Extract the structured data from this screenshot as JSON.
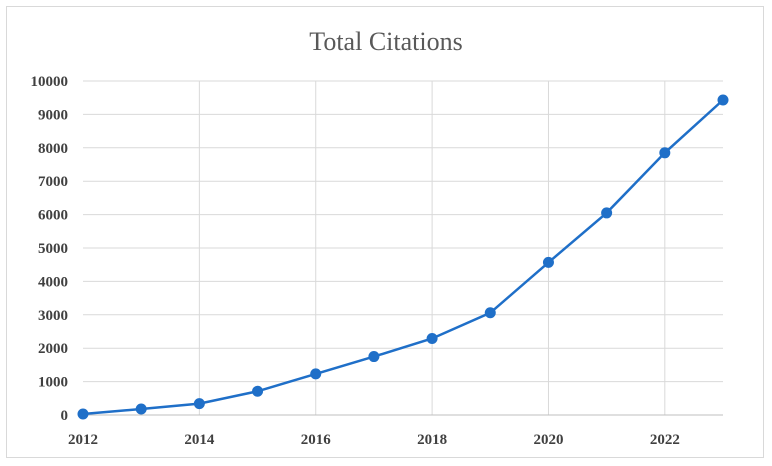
{
  "chart_data": {
    "type": "line",
    "title": "Total Citations",
    "xlabel": "",
    "ylabel": "",
    "x": [
      2012,
      2013,
      2014,
      2015,
      2016,
      2017,
      2018,
      2019,
      2020,
      2021,
      2022,
      2023
    ],
    "series": [
      {
        "values": [
          30,
          180,
          340,
          710,
          1230,
          1750,
          2290,
          3060,
          4570,
          6050,
          7850,
          9430
        ]
      }
    ],
    "xlim": [
      2012,
      2023
    ],
    "ylim": [
      0,
      10000
    ],
    "yticks": [
      "0",
      "1000",
      "2000",
      "3000",
      "4000",
      "5000",
      "6000",
      "7000",
      "8000",
      "9000",
      "10000"
    ],
    "xticks": [
      "2012",
      "2014",
      "2016",
      "2018",
      "2020",
      "2022"
    ],
    "grid": true,
    "legend": "none",
    "colors": {
      "line": "#1f6fc8",
      "grid": "#d9d9d9",
      "axis": "#bfbfbf"
    }
  }
}
